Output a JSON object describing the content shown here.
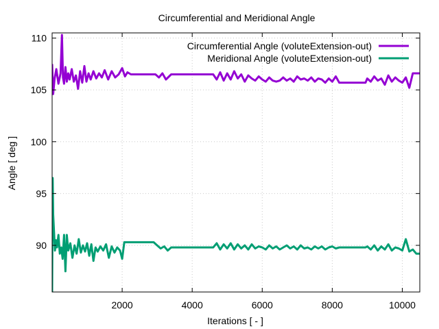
{
  "chart_data": {
    "type": "line",
    "title": "Circumferential and Meridional Angle",
    "xlabel": "Iterations [ - ]",
    "ylabel": "Angle [ deg ]",
    "xlim": [
      0,
      10500
    ],
    "ylim": [
      85.5,
      110.5
    ],
    "xticks": [
      2000,
      4000,
      6000,
      8000,
      10000
    ],
    "yticks": [
      90,
      95,
      100,
      105,
      110
    ],
    "grid": true,
    "legend_position": "top-right",
    "series": [
      {
        "name": "Circumferential Angle (voluteExtension-out)",
        "color": "#9400d3",
        "x": [
          0,
          30,
          70,
          120,
          180,
          240,
          280,
          310,
          340,
          380,
          420,
          460,
          500,
          560,
          620,
          680,
          740,
          800,
          860,
          920,
          980,
          1040,
          1100,
          1180,
          1260,
          1340,
          1420,
          1500,
          1600,
          1700,
          1800,
          1900,
          2000,
          2080,
          2150,
          2250,
          2400,
          2600,
          2800,
          2950,
          3050,
          3150,
          3250,
          3400,
          3600,
          3800,
          4000,
          4200,
          4400,
          4600,
          4700,
          4800,
          4900,
          5000,
          5100,
          5200,
          5300,
          5400,
          5500,
          5600,
          5700,
          5800,
          5900,
          6000,
          6100,
          6200,
          6300,
          6400,
          6500,
          6600,
          6700,
          6800,
          6900,
          7000,
          7100,
          7200,
          7300,
          7400,
          7500,
          7600,
          7700,
          7800,
          7900,
          8000,
          8100,
          8200,
          8400,
          8600,
          8800,
          8950,
          9000,
          9100,
          9200,
          9300,
          9400,
          9500,
          9600,
          9700,
          9800,
          9900,
          10000,
          10100,
          10200,
          10300,
          10400,
          10500
        ],
        "y": [
          107.5,
          104.6,
          106.1,
          107.0,
          105.6,
          106.6,
          110.3,
          106.2,
          105.6,
          107.2,
          105.8,
          106.6,
          106.0,
          107.0,
          105.8,
          106.4,
          105.1,
          106.8,
          105.7,
          107.3,
          105.8,
          106.6,
          106.0,
          106.8,
          106.1,
          106.6,
          106.2,
          106.9,
          106.0,
          106.8,
          106.2,
          106.5,
          107.1,
          106.3,
          106.7,
          106.5,
          106.5,
          106.5,
          106.5,
          106.5,
          106.2,
          106.6,
          106.0,
          106.5,
          106.5,
          106.5,
          106.5,
          106.5,
          106.5,
          106.5,
          106.0,
          106.7,
          105.9,
          106.6,
          106.0,
          106.8,
          106.1,
          106.5,
          105.8,
          106.4,
          106.1,
          105.9,
          106.3,
          106.0,
          105.8,
          106.2,
          105.9,
          105.8,
          105.9,
          106.2,
          105.9,
          106.1,
          105.8,
          106.3,
          106.0,
          106.1,
          105.9,
          106.2,
          105.8,
          106.1,
          106.0,
          105.7,
          106.1,
          105.8,
          106.3,
          105.7,
          105.7,
          105.7,
          105.7,
          105.7,
          106.1,
          105.8,
          106.3,
          105.9,
          106.1,
          105.5,
          106.4,
          105.8,
          106.2,
          105.9,
          105.7,
          106.2,
          105.2,
          106.6,
          106.6,
          106.6
        ]
      },
      {
        "name": "Meridional Angle (voluteExtension-out)",
        "color": "#009e73",
        "x": [
          0,
          15,
          30,
          50,
          80,
          110,
          140,
          180,
          220,
          260,
          300,
          340,
          380,
          420,
          460,
          520,
          580,
          640,
          700,
          760,
          820,
          880,
          940,
          1000,
          1060,
          1120,
          1180,
          1240,
          1300,
          1380,
          1460,
          1540,
          1620,
          1700,
          1780,
          1860,
          1940,
          2000,
          2060,
          2150,
          2300,
          2500,
          2700,
          2900,
          3000,
          3100,
          3200,
          3300,
          3400,
          3500,
          3600,
          3800,
          4000,
          4200,
          4400,
          4600,
          4700,
          4800,
          4900,
          5000,
          5100,
          5200,
          5300,
          5400,
          5500,
          5600,
          5700,
          5800,
          5900,
          6000,
          6100,
          6200,
          6300,
          6400,
          6500,
          6600,
          6700,
          6800,
          6900,
          7000,
          7100,
          7200,
          7300,
          7400,
          7500,
          7600,
          7700,
          7800,
          7900,
          8000,
          8100,
          8200,
          8400,
          8600,
          8800,
          8950,
          9000,
          9100,
          9200,
          9300,
          9400,
          9500,
          9600,
          9700,
          9800,
          9900,
          10000,
          10100,
          10200,
          10300,
          10400,
          10500
        ],
        "y": [
          85.5,
          96.5,
          93.0,
          91.5,
          89.5,
          90.5,
          89.8,
          91.0,
          89.2,
          89.8,
          88.7,
          91.0,
          87.5,
          91.0,
          89.5,
          90.2,
          88.8,
          90.0,
          89.2,
          90.6,
          89.3,
          90.0,
          89.4,
          90.2,
          89.0,
          90.1,
          88.5,
          89.8,
          89.4,
          89.9,
          89.5,
          90.1,
          88.8,
          89.9,
          89.3,
          89.8,
          89.5,
          88.7,
          90.3,
          90.3,
          90.3,
          90.3,
          90.3,
          90.3,
          90.0,
          89.7,
          89.9,
          89.5,
          89.8,
          89.8,
          89.8,
          89.8,
          89.8,
          89.8,
          89.8,
          89.8,
          90.2,
          89.6,
          90.1,
          89.7,
          90.2,
          89.6,
          90.1,
          89.7,
          90.0,
          89.6,
          90.1,
          89.7,
          89.9,
          89.8,
          89.6,
          90.0,
          89.7,
          89.9,
          89.6,
          89.8,
          90.0,
          89.7,
          89.9,
          89.6,
          90.0,
          89.7,
          89.8,
          89.6,
          89.9,
          89.7,
          89.9,
          89.6,
          89.8,
          89.9,
          89.7,
          89.8,
          89.8,
          89.8,
          89.8,
          89.8,
          89.9,
          89.6,
          90.0,
          89.5,
          89.9,
          89.6,
          90.1,
          89.5,
          89.8,
          89.7,
          89.5,
          90.6,
          89.4,
          89.6,
          89.2,
          89.2
        ]
      }
    ]
  }
}
